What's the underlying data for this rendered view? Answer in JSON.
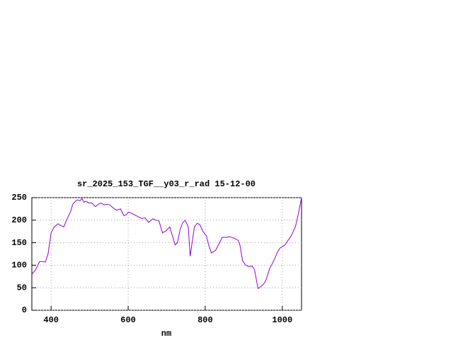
{
  "chart_data": {
    "type": "line",
    "title": "sr_2025_153_TGF__y03_r_rad 15-12-00",
    "x_label": "nm",
    "x": [
      350,
      360,
      370,
      378,
      385,
      392,
      400,
      408,
      418,
      425,
      433,
      440,
      451,
      456,
      463,
      469,
      475,
      480,
      485,
      491,
      498,
      506,
      515,
      524,
      530,
      537,
      545,
      552,
      560,
      570,
      580,
      589,
      595,
      601,
      612,
      625,
      635,
      644,
      653,
      664,
      672,
      680,
      689,
      698,
      708,
      715,
      722,
      728,
      735,
      742,
      748,
      756,
      761,
      766,
      772,
      779,
      786,
      794,
      803,
      809,
      816,
      827,
      836,
      844,
      855,
      864,
      875,
      886,
      890,
      897,
      905,
      913,
      922,
      928,
      937,
      948,
      955,
      959,
      967,
      978,
      988,
      994,
      1007,
      1015,
      1023,
      1034,
      1042,
      1050
    ],
    "series": [
      {
        "color": "#9400d3",
        "values": [
          80,
          90,
          108,
          108,
          107,
          125,
          172,
          185,
          192,
          188,
          185,
          200,
          220,
          235,
          242,
          245,
          243,
          248,
          240,
          242,
          238,
          238,
          230,
          236,
          238,
          234,
          235,
          234,
          228,
          222,
          225,
          210,
          212,
          218,
          214,
          208,
          204,
          205,
          195,
          203,
          200,
          198,
          172,
          176,
          185,
          165,
          145,
          150,
          180,
          195,
          200,
          185,
          120,
          150,
          185,
          193,
          190,
          175,
          165,
          145,
          127,
          133,
          148,
          162,
          162,
          163,
          160,
          155,
          145,
          110,
          100,
          97,
          98,
          90,
          48,
          55,
          62,
          70,
          92,
          110,
          130,
          138,
          145,
          155,
          165,
          185,
          215,
          250
        ]
      }
    ],
    "xlim": [
      350,
      1050
    ],
    "ylim": [
      0,
      250
    ],
    "xticks": [
      400,
      600,
      800,
      1000
    ],
    "yticks": [
      0,
      50,
      100,
      150,
      200,
      250
    ],
    "grid": true
  }
}
